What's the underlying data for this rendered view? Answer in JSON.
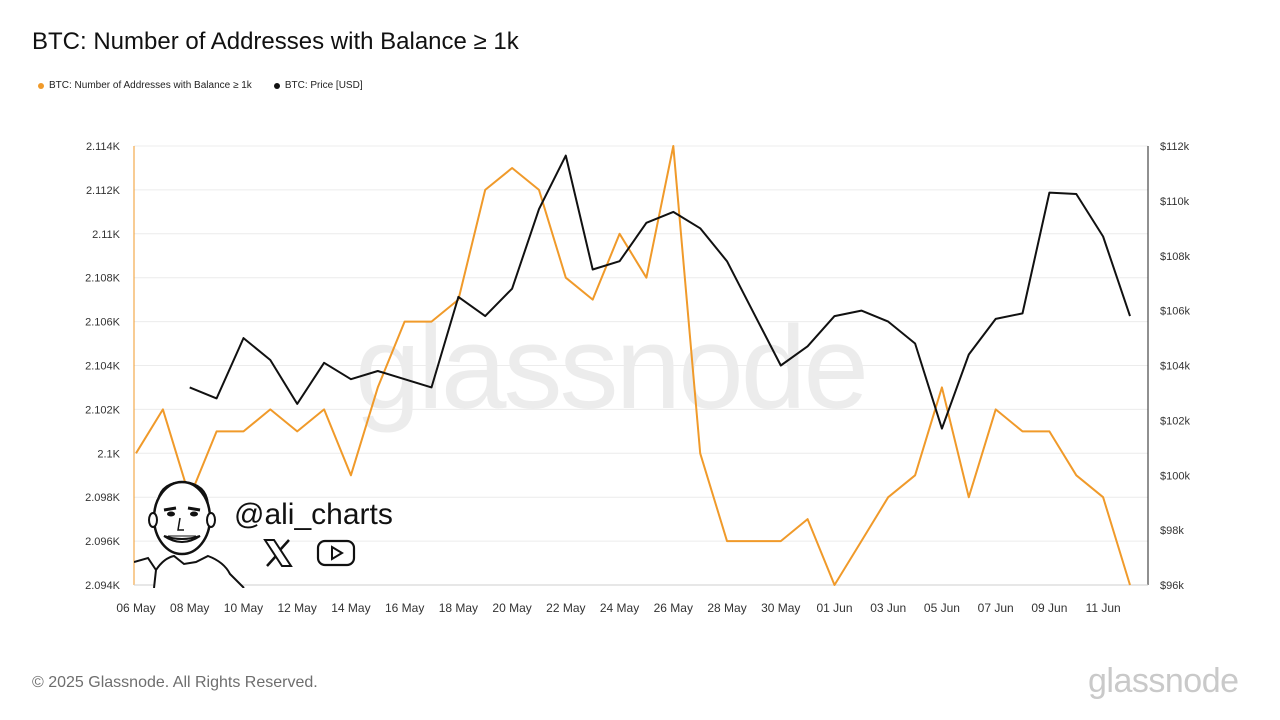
{
  "header": {
    "title": "BTC: Number of Addresses with Balance ≥ 1k"
  },
  "legend": [
    {
      "label": "BTC: Number of Addresses with Balance ≥ 1k",
      "color": "#f09a2a"
    },
    {
      "label": "BTC: Price [USD]",
      "color": "#111111"
    }
  ],
  "footer": {
    "copyright": "© 2025 Glassnode. All Rights Reserved.",
    "brand": "glassnode"
  },
  "watermark": {
    "text": "glassnode"
  },
  "overlay": {
    "handle": "@ali_charts",
    "icons": [
      "x-logo-icon",
      "youtube-icon"
    ]
  },
  "chart_data": {
    "type": "line",
    "x": [
      "06 May",
      "07 May",
      "08 May",
      "09 May",
      "10 May",
      "11 May",
      "12 May",
      "13 May",
      "14 May",
      "15 May",
      "16 May",
      "17 May",
      "18 May",
      "19 May",
      "20 May",
      "21 May",
      "22 May",
      "23 May",
      "24 May",
      "25 May",
      "26 May",
      "27 May",
      "28 May",
      "29 May",
      "30 May",
      "31 May",
      "01 Jun",
      "02 Jun",
      "03 Jun",
      "04 Jun",
      "05 Jun",
      "06 Jun",
      "07 Jun",
      "08 Jun",
      "09 Jun",
      "10 Jun",
      "11 Jun",
      "12 Jun"
    ],
    "x_tick_labels": [
      "06 May",
      "08 May",
      "10 May",
      "12 May",
      "14 May",
      "16 May",
      "18 May",
      "20 May",
      "22 May",
      "24 May",
      "26 May",
      "28 May",
      "30 May",
      "01 Jun",
      "03 Jun",
      "05 Jun",
      "07 Jun",
      "09 Jun",
      "11 Jun"
    ],
    "series": [
      {
        "name": "BTC: Number of Addresses with Balance ≥ 1k",
        "axis": "left",
        "color": "#f09a2a",
        "values": [
          2100,
          2102,
          2098,
          2101,
          2101,
          2102,
          2101,
          2102,
          2099,
          2103,
          2106,
          2106,
          2107,
          2112,
          2113,
          2112,
          2108,
          2107,
          2110,
          2108,
          2114,
          2100,
          2096,
          2096,
          2096,
          2097,
          2094,
          2096,
          2098,
          2099,
          2103,
          2098,
          2102,
          2101,
          2101,
          2099,
          2098,
          2094
        ]
      },
      {
        "name": "BTC: Price [USD]",
        "axis": "right",
        "color": "#111111",
        "values": [
          null,
          null,
          103200,
          102800,
          105000,
          104200,
          102600,
          104100,
          103500,
          103800,
          103500,
          103200,
          106500,
          105800,
          106800,
          109700,
          111650,
          107500,
          107800,
          109200,
          109600,
          109000,
          107800,
          105900,
          104000,
          104700,
          105800,
          106000,
          105600,
          104800,
          101700,
          104400,
          105700,
          105900,
          110300,
          110250,
          108700,
          105800
        ]
      }
    ],
    "y_left": {
      "ticks": [
        2094,
        2096,
        2098,
        2100,
        2102,
        2104,
        2106,
        2108,
        2110,
        2112,
        2114
      ],
      "tick_labels": [
        "2.094K",
        "2.096K",
        "2.098K",
        "2.1K",
        "2.102K",
        "2.104K",
        "2.106K",
        "2.108K",
        "2.11K",
        "2.112K",
        "2.114K"
      ],
      "range": [
        2094,
        2114
      ]
    },
    "y_right": {
      "ticks": [
        96000,
        98000,
        100000,
        102000,
        104000,
        106000,
        108000,
        110000,
        112000
      ],
      "tick_labels": [
        "$96k",
        "$98k",
        "$100k",
        "$102k",
        "$104k",
        "$106k",
        "$108k",
        "$110k",
        "$112k"
      ],
      "range": [
        96000,
        112000
      ]
    },
    "grid": true
  }
}
